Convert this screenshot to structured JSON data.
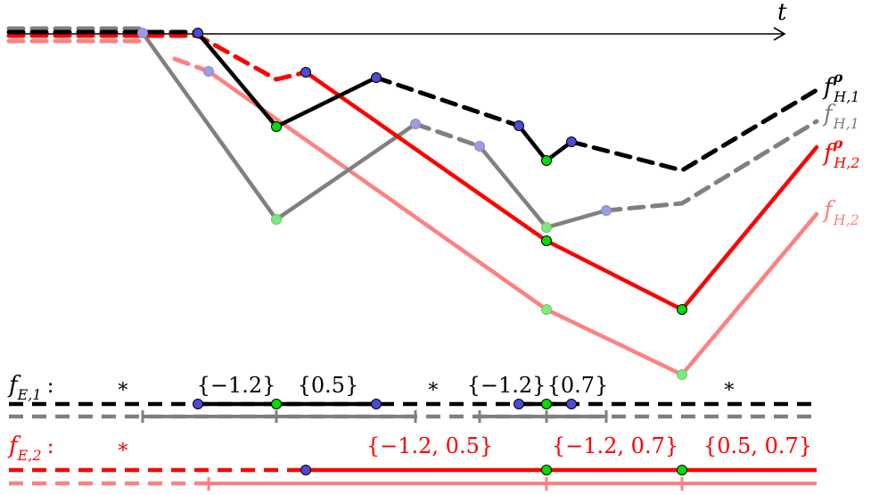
{
  "colors": {
    "black": "#000000",
    "gray": "#808080",
    "red": "#ff0000",
    "pink": "#ff8080",
    "blue_node": "#4b4bd6",
    "light_blue_node": "#9d9de6",
    "green_node": "#00dd00",
    "light_green_node": "#80e880"
  },
  "axis": {
    "label": "t"
  },
  "curve_labels": {
    "fH1_rho": {
      "base": "f",
      "sup": "ρ",
      "sub": "H,1"
    },
    "fH1": {
      "base": "f",
      "sub": "H,1"
    },
    "fH2_rho": {
      "base": "f",
      "sup": "ρ",
      "sub": "H,2"
    },
    "fH2": {
      "base": "f",
      "sub": "H,2"
    }
  },
  "row1": {
    "label": "f",
    "label_sub": "E,1",
    "label_colon": ":",
    "sets": [
      "∗",
      "{−1.2}",
      "{0.5}",
      "∗",
      "{−1.2}",
      "{0.7}",
      "∗"
    ]
  },
  "row2": {
    "label": "f",
    "label_sub": "E,2",
    "label_colon": ":",
    "sets": [
      "∗",
      "{−1.2, 0.5}",
      "{−1.2, 0.7}",
      "{0.5, 0.7}"
    ]
  }
}
